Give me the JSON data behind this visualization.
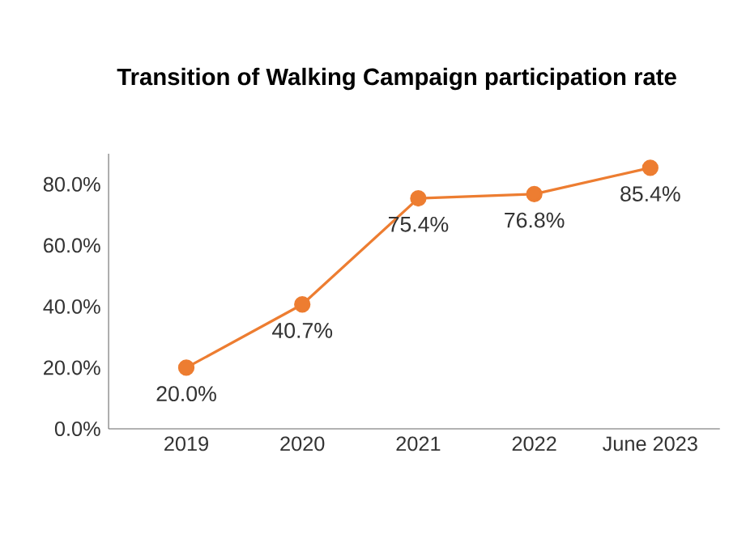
{
  "chart_data": {
    "type": "line",
    "title": "Transition of Walking Campaign participation rate",
    "categories": [
      "2019",
      "2020",
      "2021",
      "2022",
      "June 2023"
    ],
    "series": [
      {
        "color": "#ed7d31",
        "values": [
          20.0,
          40.7,
          75.4,
          76.8,
          85.4
        ],
        "value_labels": [
          "20.0%",
          "40.7%",
          "75.4%",
          "76.8%",
          "85.4%"
        ]
      }
    ],
    "ylim": [
      0,
      90
    ],
    "yticks": [
      {
        "value": 0,
        "label": "0.0%"
      },
      {
        "value": 20,
        "label": "20.0%"
      },
      {
        "value": 40,
        "label": "40.0%"
      },
      {
        "value": 60,
        "label": "60.0%"
      },
      {
        "value": 80,
        "label": "80.0%"
      }
    ],
    "marker": "circle",
    "line_style": "solid",
    "grid": false
  }
}
